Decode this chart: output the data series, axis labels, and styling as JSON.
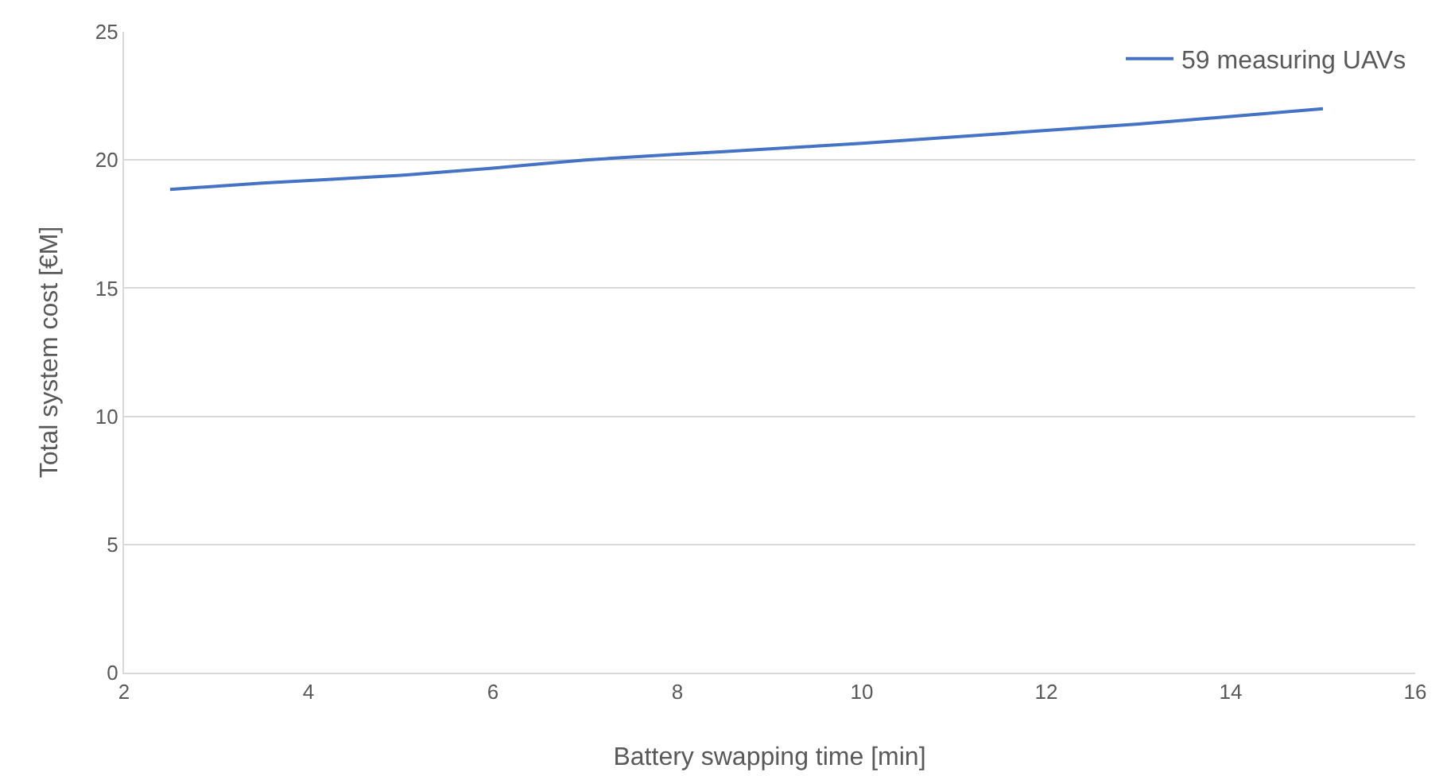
{
  "chart_data": {
    "type": "line",
    "xlabel": "Battery swapping time [min]",
    "ylabel": "Total system cost [€M]",
    "x": [
      2.5,
      3.5,
      5,
      6,
      7,
      8,
      9,
      10,
      11,
      12,
      13,
      14,
      15
    ],
    "series": [
      {
        "name": "59 measuring UAVs",
        "color": "#4472c4",
        "values": [
          18.85,
          19.1,
          19.4,
          19.68,
          20.0,
          20.22,
          20.43,
          20.65,
          20.9,
          21.15,
          21.4,
          21.7,
          22.0
        ]
      }
    ],
    "xlim": [
      2,
      16
    ],
    "xticks": [
      2,
      4,
      6,
      8,
      10,
      12,
      14,
      16
    ],
    "ylim": [
      0,
      25
    ],
    "yticks": [
      0,
      5,
      10,
      15,
      20,
      25
    ],
    "grid": "y",
    "legend": "top right",
    "marker": "none",
    "line_style": "solid"
  }
}
